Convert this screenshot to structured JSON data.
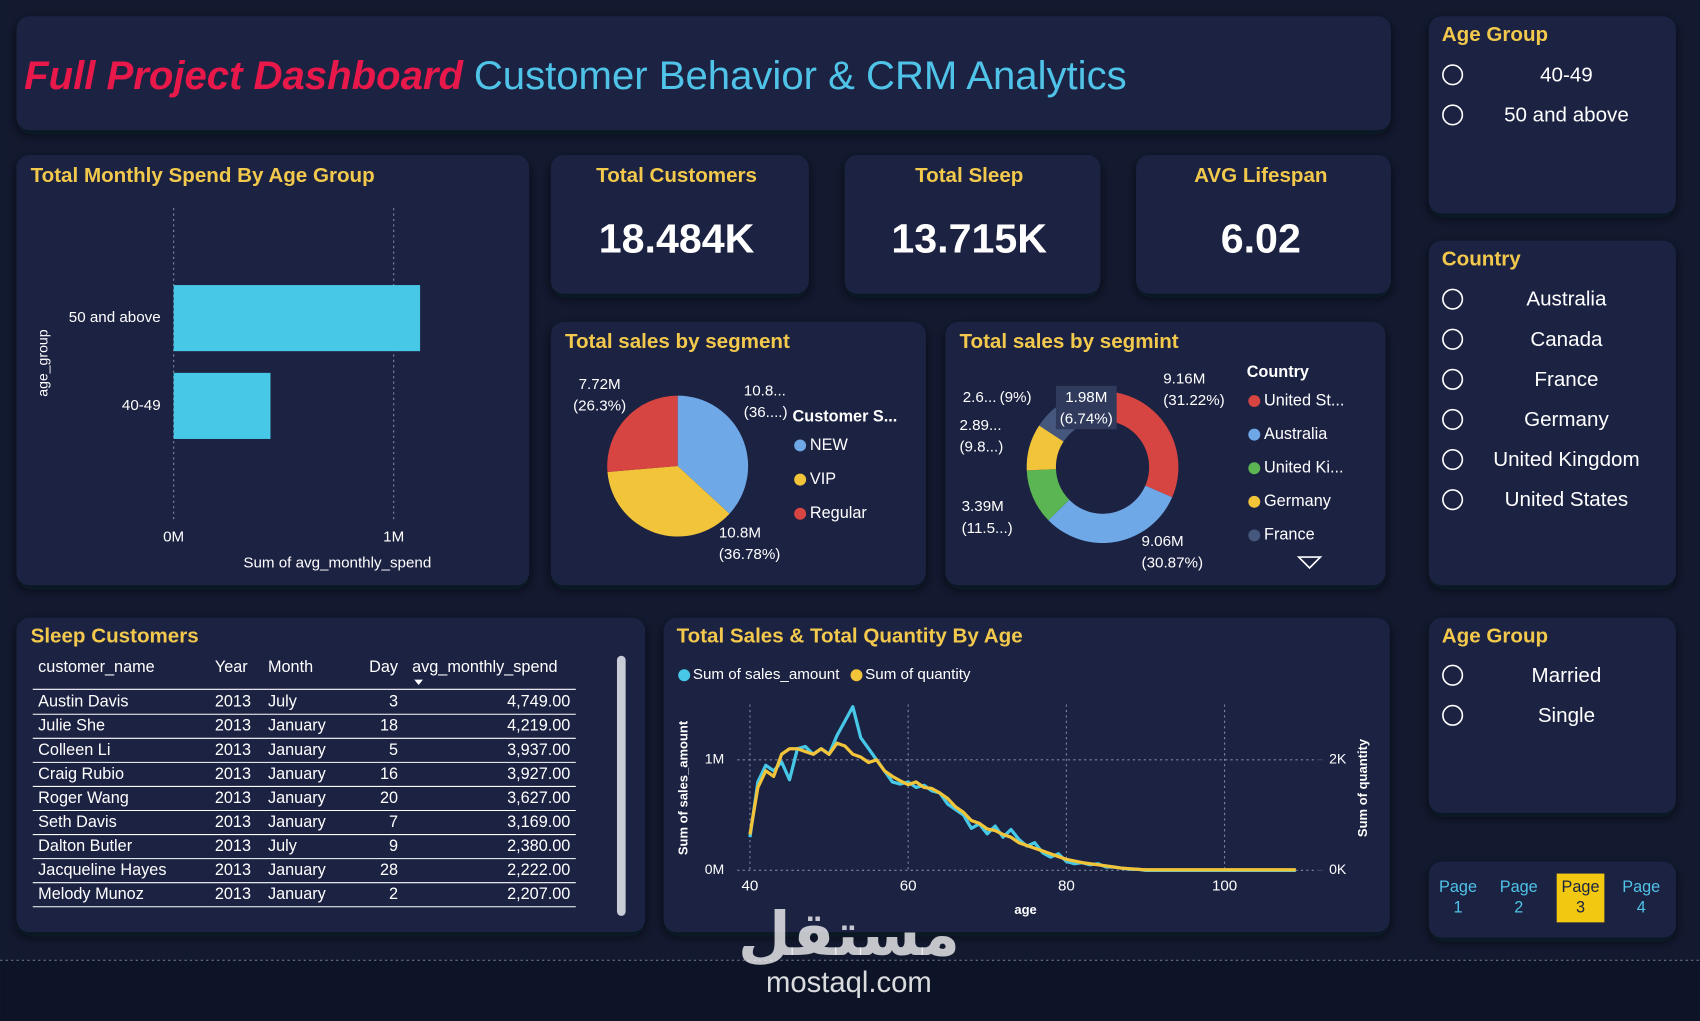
{
  "header": {
    "title_emphasis": "Full Project Dashboard",
    "title": "Customer Behavior & CRM Analytics"
  },
  "slicers": [
    {
      "title": "Age Group",
      "items": [
        "40-49",
        "50 and above"
      ]
    },
    {
      "title": "Country",
      "items": [
        "Australia",
        "Canada",
        "France",
        "Germany",
        "United Kingdom",
        "United States"
      ]
    },
    {
      "title": "Age Group",
      "items": [
        "Married",
        "Single"
      ]
    }
  ],
  "kpis": [
    {
      "label": "Total Customers",
      "value": "18.484K"
    },
    {
      "label": "Total Sleep",
      "value": "13.715K"
    },
    {
      "label": "AVG Lifespan",
      "value": "6.02"
    }
  ],
  "table": {
    "title": "Sleep Customers",
    "columns": [
      "customer_name",
      "Year",
      "Month",
      "Day",
      "avg_monthly_spend"
    ],
    "rows": [
      [
        "Austin Davis",
        "2013",
        "July",
        "3",
        "4,749.00"
      ],
      [
        "Julie She",
        "2013",
        "January",
        "18",
        "4,219.00"
      ],
      [
        "Colleen Li",
        "2013",
        "January",
        "5",
        "3,937.00"
      ],
      [
        "Craig Rubio",
        "2013",
        "January",
        "16",
        "3,927.00"
      ],
      [
        "Roger Wang",
        "2013",
        "January",
        "20",
        "3,627.00"
      ],
      [
        "Seth Davis",
        "2013",
        "January",
        "7",
        "3,169.00"
      ],
      [
        "Dalton Butler",
        "2013",
        "July",
        "9",
        "2,380.00"
      ],
      [
        "Jacqueline Hayes",
        "2013",
        "January",
        "28",
        "2,222.00"
      ],
      [
        "Melody Munoz",
        "2013",
        "January",
        "2",
        "2,207.00"
      ]
    ]
  },
  "pages": [
    "Page 1",
    "Page 2",
    "Page 3",
    "Page 4"
  ],
  "active_page": "Page 3",
  "watermark": {
    "arabic": "مستقل",
    "latin": "mostaql.com"
  },
  "chart_data": [
    {
      "type": "bar",
      "orientation": "horizontal",
      "title": "Total Monthly Spend By Age Group",
      "categories": [
        "50 and above",
        "40-49"
      ],
      "values": [
        1120000,
        440000
      ],
      "color": "#47c8e6",
      "xlim": [
        0,
        1500000
      ],
      "xticks": [
        {
          "value": 0,
          "label": "0M"
        },
        {
          "value": 1000000,
          "label": "1M"
        }
      ],
      "xlabel": "Sum of avg_monthly_spend",
      "ylabel": "age_group",
      "grid": true
    },
    {
      "type": "pie",
      "title": "Total sales by segment",
      "legend_title": "Customer S...",
      "categories": [
        "NEW",
        "VIP",
        "Regular"
      ],
      "values": [
        10.8,
        10.8,
        7.72
      ],
      "colors": [
        "#6ea8e6",
        "#f2c43a",
        "#d64541"
      ],
      "value_labels": [
        "10.8...",
        "10.8M",
        "7.72M"
      ],
      "pct_labels": [
        "(36....)",
        "(36.78%)",
        "(26.3%)"
      ]
    },
    {
      "type": "donut",
      "title": "Total sales by segmint",
      "legend_title": "Country",
      "categories": [
        "United St...",
        "Australia",
        "United Ki...",
        "Germany",
        "France",
        null
      ],
      "values": [
        9.16,
        9.06,
        3.39,
        2.89,
        2.6,
        1.98
      ],
      "colors": [
        "#d64541",
        "#6ea8e6",
        "#5ab552",
        "#f2c43a",
        "#46577e",
        "#6f6a8e"
      ],
      "value_labels": [
        "9.16M",
        "9.06M",
        "3.39M",
        "2.89...",
        "2.6...",
        "1.98M"
      ],
      "pct_labels": [
        "(31.22%)",
        "(30.87%)",
        "(11.5...)",
        "(9.8...)",
        "(9%)",
        "(6.74%)"
      ]
    },
    {
      "type": "line",
      "title": "Total Sales & Total Quantity By Age",
      "x": [
        40,
        41,
        42,
        43,
        44,
        45,
        46,
        47,
        48,
        49,
        50,
        51,
        52,
        53,
        54,
        55,
        56,
        57,
        58,
        59,
        60,
        61,
        62,
        63,
        64,
        65,
        66,
        67,
        68,
        69,
        70,
        71,
        72,
        73,
        74,
        75,
        76,
        77,
        78,
        79,
        80,
        81,
        82,
        83,
        84,
        85,
        86,
        87,
        88,
        89,
        90,
        91,
        92,
        93,
        94,
        95,
        96,
        97,
        98,
        99,
        100,
        101,
        102,
        103,
        104,
        105,
        106,
        107,
        108,
        109
      ],
      "series": [
        {
          "name": "Sum of sales_amount",
          "color": "#47c8e6",
          "values": [
            300000,
            800000,
            950000,
            900000,
            980000,
            820000,
            1100000,
            1120000,
            1050000,
            1100000,
            1050000,
            1220000,
            1350000,
            1480000,
            1200000,
            1100000,
            1000000,
            900000,
            800000,
            780000,
            800000,
            750000,
            770000,
            720000,
            700000,
            600000,
            550000,
            500000,
            380000,
            420000,
            330000,
            400000,
            300000,
            370000,
            280000,
            220000,
            250000,
            160000,
            120000,
            150000,
            80000,
            60000,
            70000,
            50000,
            60000,
            30000,
            30000,
            20000,
            10000,
            10000,
            0,
            0,
            0,
            0,
            0,
            0,
            0,
            0,
            0,
            0,
            0,
            0,
            0,
            0,
            0,
            0,
            0,
            0,
            0,
            0
          ]
        },
        {
          "name": "Sum of quantity",
          "color": "#f2c43a",
          "axis": "y2",
          "values": [
            650,
            1500,
            1800,
            1700,
            2100,
            2200,
            2200,
            2150,
            2100,
            2200,
            2100,
            2300,
            2250,
            2100,
            2050,
            1950,
            2000,
            1800,
            1700,
            1620,
            1550,
            1600,
            1500,
            1480,
            1400,
            1300,
            1150,
            1050,
            900,
            850,
            750,
            720,
            650,
            600,
            500,
            450,
            400,
            350,
            300,
            250,
            200,
            170,
            140,
            120,
            100,
            80,
            60,
            40,
            30,
            20,
            10,
            10,
            10,
            10,
            10,
            10,
            10,
            10,
            10,
            10,
            10,
            10,
            10,
            10,
            10,
            10,
            10,
            10,
            10,
            10
          ]
        }
      ],
      "xlim": [
        38.4,
        111.7
      ],
      "xticks": [
        40,
        60,
        80,
        100
      ],
      "ylim": [
        0,
        1500000
      ],
      "yticks": [
        {
          "value": 0,
          "label": "0M"
        },
        {
          "value": 1000000,
          "label": "1M"
        }
      ],
      "y2lim": [
        0,
        3000
      ],
      "y2ticks": [
        {
          "value": 0,
          "label": "0K"
        },
        {
          "value": 2000,
          "label": "2K"
        }
      ],
      "xlabel": "age",
      "ylabel": "Sum of sales_amount",
      "y2label": "Sum of quantity",
      "grid": true
    }
  ]
}
